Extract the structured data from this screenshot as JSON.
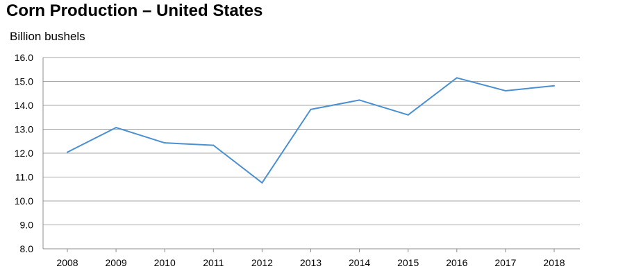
{
  "chart_data": {
    "type": "line",
    "title": "Corn Production – United States",
    "ylabel": "Billion bushels",
    "xlabel": "",
    "categories": [
      "2008",
      "2009",
      "2010",
      "2011",
      "2012",
      "2013",
      "2014",
      "2015",
      "2016",
      "2017",
      "2018"
    ],
    "series": [
      {
        "values": [
          12.04,
          13.07,
          12.43,
          12.33,
          10.76,
          13.83,
          14.22,
          13.6,
          15.15,
          14.61,
          14.82
        ]
      }
    ],
    "ylim": [
      8.0,
      16.0
    ],
    "yticks": [
      "8.0",
      "9.0",
      "10.0",
      "11.0",
      "12.0",
      "13.0",
      "14.0",
      "15.0",
      "16.0"
    ],
    "grid": true,
    "legend": "none",
    "colors": {
      "line": "#4a8fd0",
      "grid": "#a6a6a6",
      "axis": "#8c8c8c"
    }
  }
}
